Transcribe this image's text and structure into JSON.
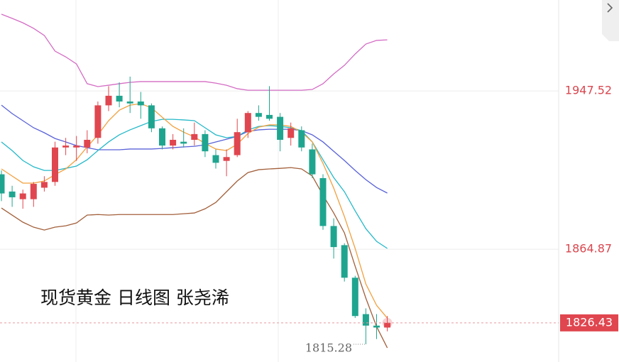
{
  "chart_data": {
    "type": "candlestick",
    "title": "现货黄金 日线图  张尧浠",
    "ylim": [
      1806,
      1995
    ],
    "yticks": [
      1947.52,
      1864.87
    ],
    "grid": true,
    "up_color": "#e0464f",
    "down_color": "#1fa58f",
    "open": [
      1904,
      1895,
      1891,
      1891,
      1897,
      1900,
      1918,
      1918,
      1918,
      1923,
      1940,
      1945,
      1942,
      1942,
      1940,
      1928,
      1919,
      1921,
      1922,
      1925,
      1914,
      1911,
      1914,
      1926,
      1936,
      1935,
      1934,
      1923,
      1927,
      1917,
      1902,
      1877,
      1867,
      1850,
      1831,
      1825,
      1824
    ],
    "high": [
      1906,
      1898,
      1896,
      1900,
      1903,
      1921,
      1923,
      1924,
      1927,
      1942,
      1950,
      1952,
      1955,
      1947,
      1941,
      1929,
      1925,
      1928,
      1931,
      1927,
      1917,
      1917,
      1933,
      1937,
      1940,
      1950,
      1936,
      1931,
      1929,
      1920,
      1904,
      1881,
      1868,
      1851,
      1834,
      1831,
      1830
    ],
    "low": [
      1890,
      1887,
      1886,
      1887,
      1895,
      1898,
      1914,
      1911,
      1915,
      1920,
      1937,
      1939,
      1936,
      1933,
      1926,
      1917,
      1917,
      1918,
      1919,
      1913,
      1907,
      1903,
      1913,
      1923,
      1932,
      1932,
      1916,
      1919,
      1916,
      1902,
      1875,
      1860,
      1848,
      1829,
      1815.28,
      1818,
      1822
    ],
    "close": [
      1894,
      1892,
      1894,
      1899,
      1900,
      1918,
      1919,
      1919,
      1922,
      1940,
      1945,
      1942,
      1941,
      1940,
      1928,
      1919,
      1922,
      1920,
      1925,
      1916,
      1910,
      1913,
      1926,
      1936,
      1934,
      1933,
      1922,
      1928,
      1918,
      1904,
      1877,
      1866,
      1850,
      1830,
      1825,
      1824,
      1826.43
    ],
    "series": [
      {
        "color": "#d46cc4",
        "values": [
          1987.6,
          1985.4,
          1983.1,
          1980.2,
          1976.5,
          1968.3,
          1965.3,
          1961.6,
          1951.3,
          1949.8,
          1950.5,
          1951.3,
          1952.0,
          1952.4,
          1952.4,
          1952.4,
          1952.4,
          1952.4,
          1952.4,
          1952.4,
          1951.6,
          1950.5,
          1948.7,
          1947.9,
          1947.9,
          1947.9,
          1947.9,
          1947.9,
          1947.9,
          1948.3,
          1951.3,
          1956.4,
          1960.9,
          1966.8,
          1972.0,
          1973.9,
          1974.2
        ]
      },
      {
        "color": "#5a62d8",
        "values": [
          1940.1,
          1935.7,
          1932.0,
          1928.3,
          1925.7,
          1922.7,
          1920.9,
          1919.0,
          1917.9,
          1916.8,
          1916.8,
          1916.8,
          1917.2,
          1917.2,
          1917.2,
          1917.5,
          1917.9,
          1918.3,
          1918.6,
          1919.4,
          1920.9,
          1922.3,
          1923.8,
          1926.4,
          1927.2,
          1927.5,
          1927.5,
          1927.5,
          1926.8,
          1924.6,
          1920.9,
          1916.0,
          1911.2,
          1906.0,
          1901.2,
          1897.1,
          1894.2
        ]
      },
      {
        "color": "#a25f3a",
        "values": [
          1886.4,
          1882.7,
          1879.0,
          1876.4,
          1874.9,
          1876.4,
          1877.1,
          1878.6,
          1882.7,
          1883.0,
          1882.7,
          1883.0,
          1883.0,
          1883.0,
          1883.0,
          1883.0,
          1883.0,
          1883.4,
          1883.8,
          1886.0,
          1889.3,
          1894.9,
          1900.5,
          1904.9,
          1906.4,
          1906.8,
          1907.1,
          1907.5,
          1906.8,
          1903.1,
          1893.1,
          1883.8,
          1873.4,
          1856.0,
          1839.3,
          1824.5,
          1813.4
        ]
      },
      {
        "color": "#25b9c9",
        "values": [
          1920.9,
          1916.4,
          1911.2,
          1907.9,
          1906.0,
          1906.0,
          1907.1,
          1908.3,
          1911.6,
          1916.4,
          1920.9,
          1924.6,
          1927.2,
          1929.4,
          1931.6,
          1932.7,
          1932.7,
          1932.4,
          1932.0,
          1928.3,
          1924.6,
          1923.1,
          1923.8,
          1927.2,
          1929.0,
          1929.4,
          1929.0,
          1928.3,
          1926.8,
          1920.9,
          1911.6,
          1902.3,
          1894.9,
          1884.9,
          1875.6,
          1869.0,
          1865.3
        ]
      },
      {
        "color": "#f2a03e",
        "values": [
          1906.8,
          1903.1,
          1899.4,
          1899.4,
          1900.5,
          1903.8,
          1906.8,
          1911.6,
          1918.3,
          1924.6,
          1932.0,
          1937.5,
          1940.1,
          1940.9,
          1938.7,
          1933.8,
          1929.0,
          1926.0,
          1923.5,
          1920.1,
          1917.2,
          1916.4,
          1919.7,
          1925.3,
          1928.6,
          1929.8,
          1929.8,
          1929.0,
          1926.0,
          1920.9,
          1909.7,
          1896.8,
          1881.9,
          1865.3,
          1846.7,
          1835.6,
          1828.9
        ]
      }
    ]
  }
}
